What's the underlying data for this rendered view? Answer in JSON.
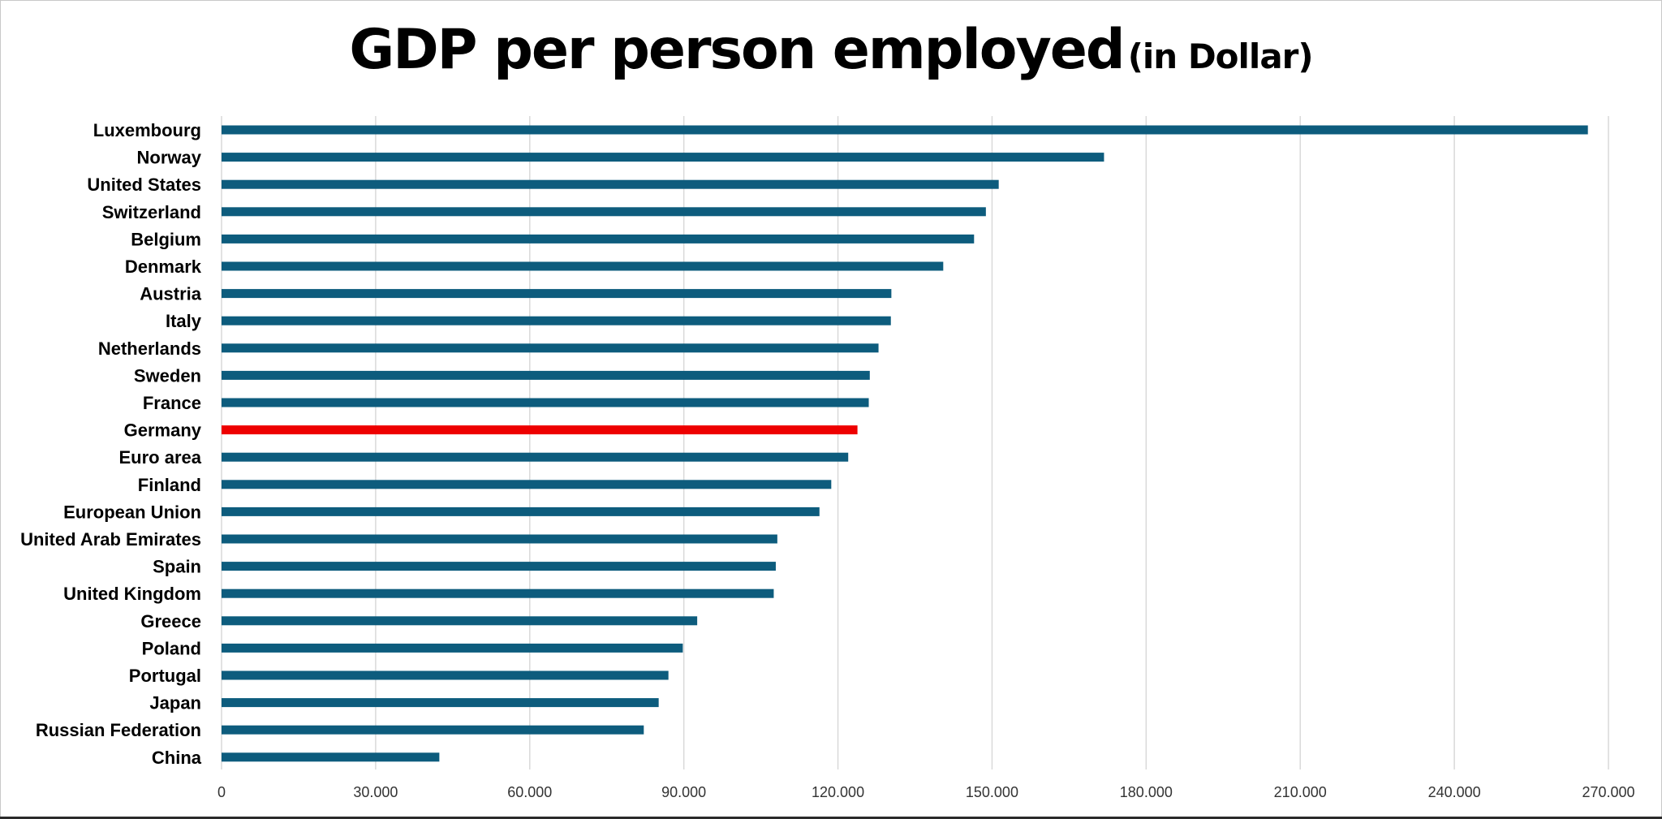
{
  "chart_data": {
    "type": "bar",
    "orientation": "horizontal",
    "title": "GDP per person employed",
    "subtitle": "(in Dollar)",
    "xlabel": "",
    "ylabel": "",
    "categories": [
      "Luxembourg",
      "Norway",
      "United States",
      "Switzerland",
      "Belgium",
      "Denmark",
      "Austria",
      "Italy",
      "Netherlands",
      "Sweden",
      "France",
      "Germany",
      "Euro area",
      "Finland",
      "European Union",
      "United Arab Emirates",
      "Spain",
      "United Kingdom",
      "Greece",
      "Poland",
      "Portugal",
      "Japan",
      "Russian Federation",
      "China"
    ],
    "values": [
      266000,
      171800,
      151300,
      148800,
      146500,
      140500,
      130400,
      130300,
      127900,
      126200,
      126000,
      123800,
      122000,
      118700,
      116400,
      108200,
      107900,
      107500,
      92600,
      89800,
      87000,
      85100,
      82200,
      42400
    ],
    "highlight": {
      "category": "Germany",
      "color": "#ee0000"
    },
    "bar_color": "#0d5c7d",
    "xlim": [
      0,
      270000
    ],
    "ticks": [
      0,
      30000,
      60000,
      90000,
      120000,
      150000,
      180000,
      210000,
      240000,
      270000
    ],
    "tick_labels": [
      "0",
      "30.000",
      "60.000",
      "90.000",
      "120.000",
      "150.000",
      "180.000",
      "210.000",
      "240.000",
      "270.000"
    ],
    "grid": true,
    "legend": "none"
  }
}
